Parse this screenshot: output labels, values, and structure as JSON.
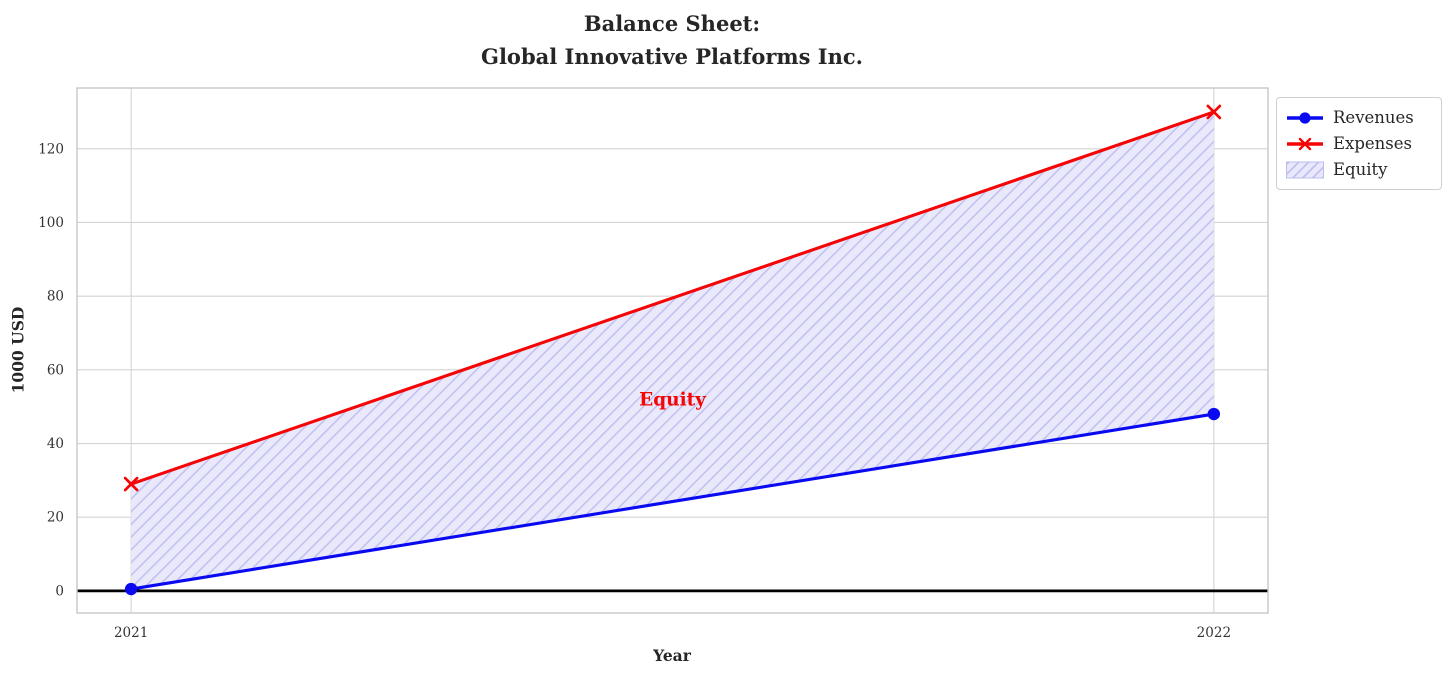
{
  "title": {
    "line1": "Balance Sheet:",
    "line2": "Global Innovative Platforms Inc."
  },
  "chart_data": {
    "type": "line",
    "title": "Balance Sheet:\nGlobal Innovative Platforms Inc.",
    "xlabel": "Year",
    "ylabel": "1000 USD",
    "x": [
      2021,
      2022
    ],
    "x_tick_labels": [
      "2021",
      "2022"
    ],
    "y_ticks": [
      0,
      20,
      40,
      60,
      80,
      100,
      120
    ],
    "xlim": [
      2020.95,
      2022.05
    ],
    "ylim": [
      -6,
      136.5
    ],
    "grid": true,
    "series": [
      {
        "name": "Revenues",
        "values": [
          0.5,
          48
        ],
        "color": "#0a0af0",
        "marker": "circle"
      },
      {
        "name": "Expenses",
        "values": [
          29,
          130
        ],
        "color": "#f50505",
        "marker": "x"
      }
    ],
    "area": {
      "name": "Equity",
      "between": [
        "Revenues",
        "Expenses"
      ],
      "fill_color": "#e9e9fb",
      "hatch_color": "#bcbcf0",
      "hatch_style": "///"
    },
    "annotation": {
      "text": "Equity",
      "x": 2021.5,
      "y": 52,
      "color": "#f50505"
    },
    "zero_line": {
      "y": 0,
      "color": "#000000"
    },
    "legend_position": "upper-right-outside",
    "colors": {
      "grid": "#d4d4d4",
      "spine": "#c7c7c7",
      "tick_text": "#333333",
      "title_text": "#262626"
    }
  },
  "legend": {
    "entries": [
      "Revenues",
      "Expenses",
      "Equity"
    ]
  }
}
